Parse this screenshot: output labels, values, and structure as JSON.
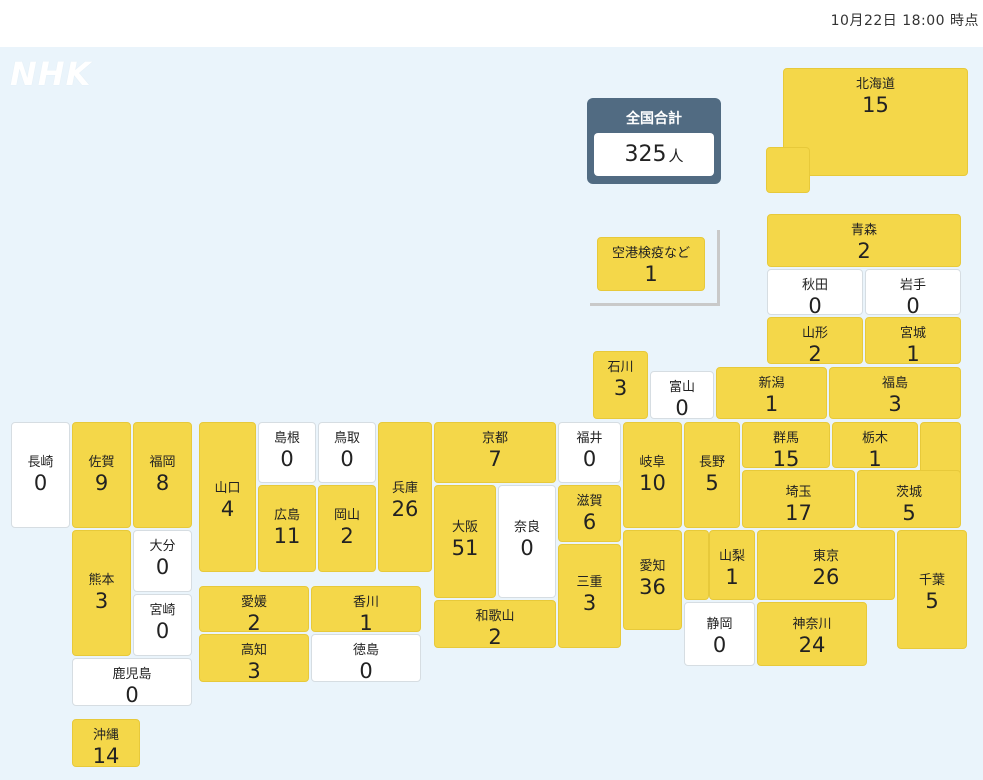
{
  "timestamp": "10月22日 18:00 時点",
  "logo": "NHK",
  "total": {
    "label": "全国合計",
    "value": "325",
    "unit": "人"
  },
  "colors": {
    "positive": "#f4d749",
    "zero": "#ffffff",
    "background": "#eaf4fb",
    "total_panel": "#516b82"
  },
  "prefectures": [
    {
      "name": "北海道",
      "count": "15"
    },
    {
      "name": "青森",
      "count": "2"
    },
    {
      "name": "秋田",
      "count": "0"
    },
    {
      "name": "岩手",
      "count": "0"
    },
    {
      "name": "山形",
      "count": "2"
    },
    {
      "name": "宮城",
      "count": "1"
    },
    {
      "name": "石川",
      "count": "3"
    },
    {
      "name": "富山",
      "count": "0"
    },
    {
      "name": "新潟",
      "count": "1"
    },
    {
      "name": "福島",
      "count": "3"
    },
    {
      "name": "長崎",
      "count": "0"
    },
    {
      "name": "佐賀",
      "count": "9"
    },
    {
      "name": "福岡",
      "count": "8"
    },
    {
      "name": "山口",
      "count": "4"
    },
    {
      "name": "島根",
      "count": "0"
    },
    {
      "name": "鳥取",
      "count": "0"
    },
    {
      "name": "兵庫",
      "count": "26"
    },
    {
      "name": "京都",
      "count": "7"
    },
    {
      "name": "福井",
      "count": "0"
    },
    {
      "name": "岐阜",
      "count": "10"
    },
    {
      "name": "長野",
      "count": "5"
    },
    {
      "name": "群馬",
      "count": "15"
    },
    {
      "name": "栃木",
      "count": "1"
    },
    {
      "name": "広島",
      "count": "11"
    },
    {
      "name": "岡山",
      "count": "2"
    },
    {
      "name": "大阪",
      "count": "51"
    },
    {
      "name": "奈良",
      "count": "0"
    },
    {
      "name": "滋賀",
      "count": "6"
    },
    {
      "name": "埼玉",
      "count": "17"
    },
    {
      "name": "茨城",
      "count": "5"
    },
    {
      "name": "熊本",
      "count": "3"
    },
    {
      "name": "大分",
      "count": "0"
    },
    {
      "name": "宮崎",
      "count": "0"
    },
    {
      "name": "愛知",
      "count": "36"
    },
    {
      "name": "山梨",
      "count": "1"
    },
    {
      "name": "東京",
      "count": "26"
    },
    {
      "name": "千葉",
      "count": "5"
    },
    {
      "name": "三重",
      "count": "3"
    },
    {
      "name": "愛媛",
      "count": "2"
    },
    {
      "name": "香川",
      "count": "1"
    },
    {
      "name": "和歌山",
      "count": "2"
    },
    {
      "name": "静岡",
      "count": "0"
    },
    {
      "name": "神奈川",
      "count": "24"
    },
    {
      "name": "高知",
      "count": "3"
    },
    {
      "name": "徳島",
      "count": "0"
    },
    {
      "name": "鹿児島",
      "count": "0"
    },
    {
      "name": "沖縄",
      "count": "14"
    },
    {
      "name": "空港検疫など",
      "count": "1"
    }
  ]
}
